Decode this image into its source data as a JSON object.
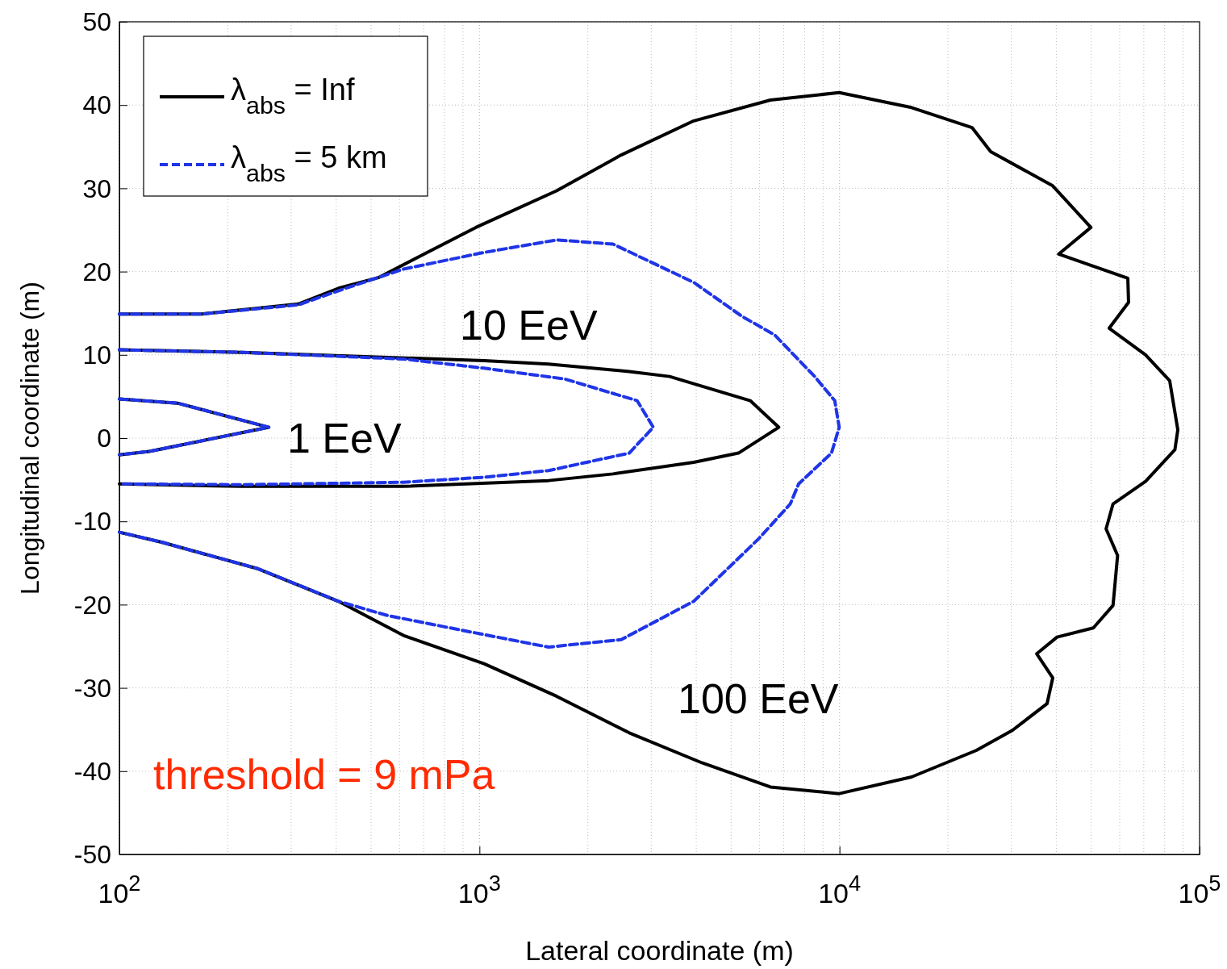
{
  "chart_data": {
    "type": "line",
    "xlabel": "Lateral coordinate (m)",
    "ylabel": "Longitudinal coordinate (m)",
    "log": "x",
    "grid": true,
    "legend": "top left",
    "xlim": [
      100,
      100000
    ],
    "ylim": [
      -50,
      50
    ],
    "xticks": [
      {
        "value": 100,
        "label": "10$^{2}$"
      },
      {
        "value": 1000,
        "label": "10$^{3}$"
      },
      {
        "value": 10000,
        "label": "10$^{4}$"
      },
      {
        "value": 100000,
        "label": "10$^{5}$"
      }
    ],
    "yticks": [
      -50,
      -40,
      -30,
      -20,
      -10,
      0,
      10,
      20,
      30,
      40,
      50
    ],
    "annotations": [
      "1 EeV",
      "10 EeV",
      "100 EeV",
      "threshold = 9 mPa"
    ],
    "series": [
      {
        "name": "λ$_{abs}$ = Inf",
        "color": "#000000",
        "line_style": "solid",
        "x": [
          100,
          145,
          260,
          121,
          100
        ],
        "values": [
          4.7,
          4.2,
          1.3,
          -1.6,
          -2.0
        ]
      },
      {
        "color": "#000000",
        "line_style": "solid",
        "x": [
          100,
          219,
          1030,
          1556,
          2606,
          3373,
          5650,
          6780,
          5240,
          3936,
          2350,
          1556,
          615,
          219,
          100
        ],
        "values": [
          10.6,
          10.3,
          9.3,
          8.9,
          8.0,
          7.4,
          4.5,
          1.3,
          -1.8,
          -2.9,
          -4.3,
          -5.1,
          -5.8,
          -5.8,
          -5.5
        ]
      },
      {
        "color": "#000000",
        "line_style": "solid",
        "x": [
          100,
          169,
          314,
          406,
          526,
          977,
          1637,
          2476,
          3937,
          6430,
          9980,
          15850,
          23330,
          26300,
          39100,
          49900,
          40600,
          63200,
          63500,
          56100,
          70800,
          82600,
          87000,
          85400,
          70800,
          57500,
          55000,
          59200,
          57500,
          50700,
          40200,
          35300,
          39100,
          37700,
          30200,
          24000,
          15850,
          9980,
          6430,
          4150,
          2607,
          1637,
          1030,
          615,
          406,
          243,
          131,
          100
        ],
        "values": [
          14.9,
          14.9,
          16.1,
          18.0,
          19.3,
          25.3,
          29.7,
          34.0,
          38.1,
          40.6,
          41.5,
          39.7,
          37.3,
          34.4,
          30.3,
          25.3,
          22.1,
          19.2,
          16.3,
          13.2,
          10.0,
          6.9,
          1.0,
          -1.4,
          -5.2,
          -7.9,
          -10.9,
          -14.1,
          -20.1,
          -22.8,
          -23.9,
          -25.9,
          -28.8,
          -31.9,
          -35.1,
          -37.5,
          -40.7,
          -42.7,
          -41.9,
          -39.0,
          -35.4,
          -31.0,
          -27.1,
          -23.7,
          -19.6,
          -15.7,
          -12.5,
          -11.3
        ]
      },
      {
        "name": "λ$_{abs}$ = 5 km",
        "color": "#1f35e6",
        "line_style": "dashed",
        "x": [
          100,
          145,
          260,
          121,
          100
        ],
        "values": [
          4.7,
          4.2,
          1.3,
          -1.6,
          -2.0
        ]
      },
      {
        "color": "#1f35e6",
        "line_style": "dashed",
        "x": [
          100,
          219,
          615,
          1030,
          1726,
          2740,
          3040,
          2606,
          1556,
          1030,
          615,
          219,
          100
        ],
        "values": [
          10.6,
          10.3,
          9.5,
          8.4,
          7.1,
          4.5,
          1.3,
          -1.8,
          -3.9,
          -4.7,
          -5.3,
          -5.6,
          -5.5
        ]
      },
      {
        "color": "#1f35e6",
        "line_style": "dashed",
        "x": [
          100,
          169,
          314,
          406,
          615,
          1030,
          1637,
          2350,
          3937,
          5370,
          6600,
          8530,
          9700,
          9980,
          9500,
          7700,
          7300,
          5960,
          3937,
          2476,
          1556,
          1030,
          555,
          406,
          243,
          131,
          100
        ],
        "values": [
          14.9,
          14.9,
          16.0,
          17.7,
          20.3,
          22.3,
          23.8,
          23.3,
          18.7,
          14.6,
          12.4,
          7.4,
          4.5,
          1.3,
          -1.8,
          -5.5,
          -7.9,
          -12.1,
          -19.6,
          -24.2,
          -25.1,
          -23.6,
          -21.3,
          -19.6,
          -15.7,
          -12.5,
          -11.3
        ]
      }
    ]
  }
}
